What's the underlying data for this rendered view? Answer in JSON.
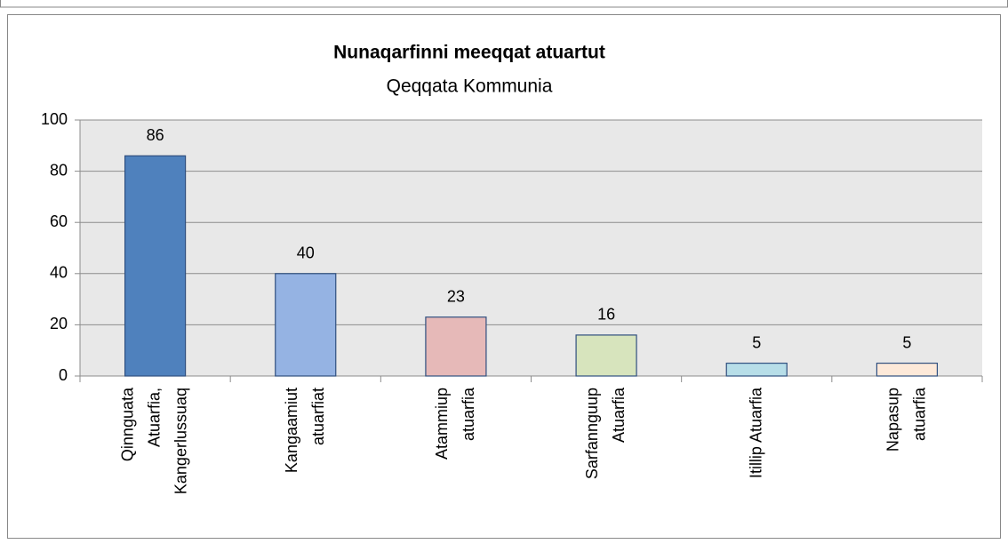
{
  "chart_data": {
    "type": "bar",
    "title": "Nunaqarfinni meeqqat atuartut",
    "subtitle": "Qeqqata Kommunia",
    "categories": [
      "Qinnguata\nAtuarfia,\nKangerlussuaq",
      "Kangaamiut\natuarfiat",
      "Atammiup\natuarfia",
      "Sarfannguup\nAtuarfia",
      "Itillip Atuarfia",
      "Napasup\natuarfia"
    ],
    "values": [
      86,
      40,
      23,
      16,
      5,
      5
    ],
    "colors": [
      "#4f81bd",
      "#95b3e3",
      "#e6b9b8",
      "#d7e4bd",
      "#b7dee8",
      "#fde9d9"
    ],
    "ylim": [
      0,
      100
    ],
    "yticks": [
      0,
      20,
      40,
      60,
      80,
      100
    ],
    "grid": true
  }
}
